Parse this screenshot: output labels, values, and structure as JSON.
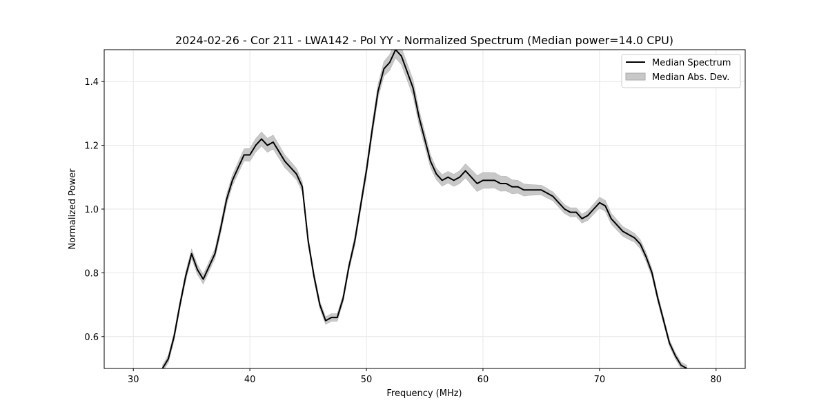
{
  "chart_data": {
    "type": "line",
    "title": "2024-02-26 - Cor 211 - LWA142 - Pol YY - Normalized Spectrum (Median power=14.0 CPU)",
    "xlabel": "Frequency (MHz)",
    "ylabel": "Normalized Power",
    "xlim": [
      27.5,
      82.5
    ],
    "ylim": [
      0.5,
      1.5
    ],
    "xticks": [
      30,
      40,
      50,
      60,
      70,
      80
    ],
    "yticks": [
      0.6,
      0.8,
      1.0,
      1.2,
      1.4
    ],
    "xtick_labels": [
      "30",
      "40",
      "50",
      "60",
      "70",
      "80"
    ],
    "ytick_labels": [
      "0.6",
      "0.8",
      "1.0",
      "1.2",
      "1.4"
    ],
    "grid": true,
    "legend_placement": "top-right",
    "series": [
      {
        "name": "Median Spectrum",
        "kind": "line",
        "color": "#000000",
        "x": [
          32.5,
          33.0,
          33.5,
          34.0,
          34.5,
          35.0,
          35.5,
          36.0,
          36.5,
          37.0,
          37.5,
          38.0,
          38.5,
          39.0,
          39.5,
          40.0,
          40.5,
          41.0,
          41.5,
          42.0,
          42.5,
          43.0,
          43.5,
          44.0,
          44.5,
          45.0,
          45.5,
          46.0,
          46.5,
          47.0,
          47.5,
          48.0,
          48.5,
          49.0,
          49.5,
          50.0,
          50.5,
          51.0,
          51.5,
          52.0,
          52.5,
          53.0,
          53.5,
          54.0,
          54.5,
          55.0,
          55.5,
          56.0,
          56.5,
          57.0,
          57.5,
          58.0,
          58.5,
          59.0,
          59.5,
          60.0,
          60.5,
          61.0,
          61.5,
          62.0,
          62.5,
          63.0,
          63.5,
          64.0,
          64.5,
          65.0,
          65.5,
          66.0,
          66.5,
          67.0,
          67.5,
          68.0,
          68.5,
          69.0,
          69.5,
          70.0,
          70.5,
          71.0,
          71.5,
          72.0,
          72.5,
          73.0,
          73.5,
          74.0,
          74.5,
          75.0,
          75.5,
          76.0,
          76.5,
          77.0,
          77.5
        ],
        "y": [
          0.5,
          0.53,
          0.6,
          0.7,
          0.79,
          0.86,
          0.81,
          0.78,
          0.82,
          0.86,
          0.94,
          1.03,
          1.09,
          1.13,
          1.17,
          1.17,
          1.2,
          1.22,
          1.2,
          1.21,
          1.18,
          1.15,
          1.13,
          1.11,
          1.07,
          0.9,
          0.79,
          0.7,
          0.65,
          0.66,
          0.66,
          0.72,
          0.82,
          0.9,
          1.01,
          1.12,
          1.25,
          1.37,
          1.44,
          1.46,
          1.5,
          1.48,
          1.43,
          1.38,
          1.29,
          1.22,
          1.15,
          1.11,
          1.09,
          1.1,
          1.09,
          1.1,
          1.12,
          1.1,
          1.08,
          1.09,
          1.09,
          1.09,
          1.08,
          1.08,
          1.07,
          1.07,
          1.06,
          1.06,
          1.06,
          1.06,
          1.05,
          1.04,
          1.02,
          1.0,
          0.99,
          0.99,
          0.97,
          0.98,
          1.0,
          1.02,
          1.01,
          0.97,
          0.95,
          0.93,
          0.92,
          0.91,
          0.89,
          0.85,
          0.8,
          0.72,
          0.65,
          0.58,
          0.54,
          0.51,
          0.5
        ]
      },
      {
        "name": "Median Abs. Dev.",
        "kind": "band",
        "color": "#c8c8c8",
        "band_halfwidth": [
          0.01,
          0.012,
          0.013,
          0.013,
          0.014,
          0.015,
          0.015,
          0.015,
          0.015,
          0.015,
          0.016,
          0.017,
          0.017,
          0.018,
          0.019,
          0.02,
          0.021,
          0.022,
          0.022,
          0.022,
          0.021,
          0.02,
          0.019,
          0.018,
          0.016,
          0.014,
          0.013,
          0.012,
          0.012,
          0.012,
          0.012,
          0.012,
          0.013,
          0.015,
          0.016,
          0.017,
          0.02,
          0.022,
          0.023,
          0.025,
          0.026,
          0.027,
          0.026,
          0.026,
          0.024,
          0.022,
          0.02,
          0.018,
          0.018,
          0.018,
          0.019,
          0.02,
          0.022,
          0.024,
          0.025,
          0.025,
          0.025,
          0.024,
          0.024,
          0.023,
          0.022,
          0.02,
          0.019,
          0.017,
          0.016,
          0.015,
          0.015,
          0.014,
          0.014,
          0.014,
          0.014,
          0.014,
          0.014,
          0.015,
          0.016,
          0.017,
          0.017,
          0.017,
          0.016,
          0.015,
          0.015,
          0.014,
          0.014,
          0.014,
          0.013,
          0.012,
          0.011,
          0.01,
          0.01,
          0.01,
          0.01
        ]
      }
    ]
  }
}
